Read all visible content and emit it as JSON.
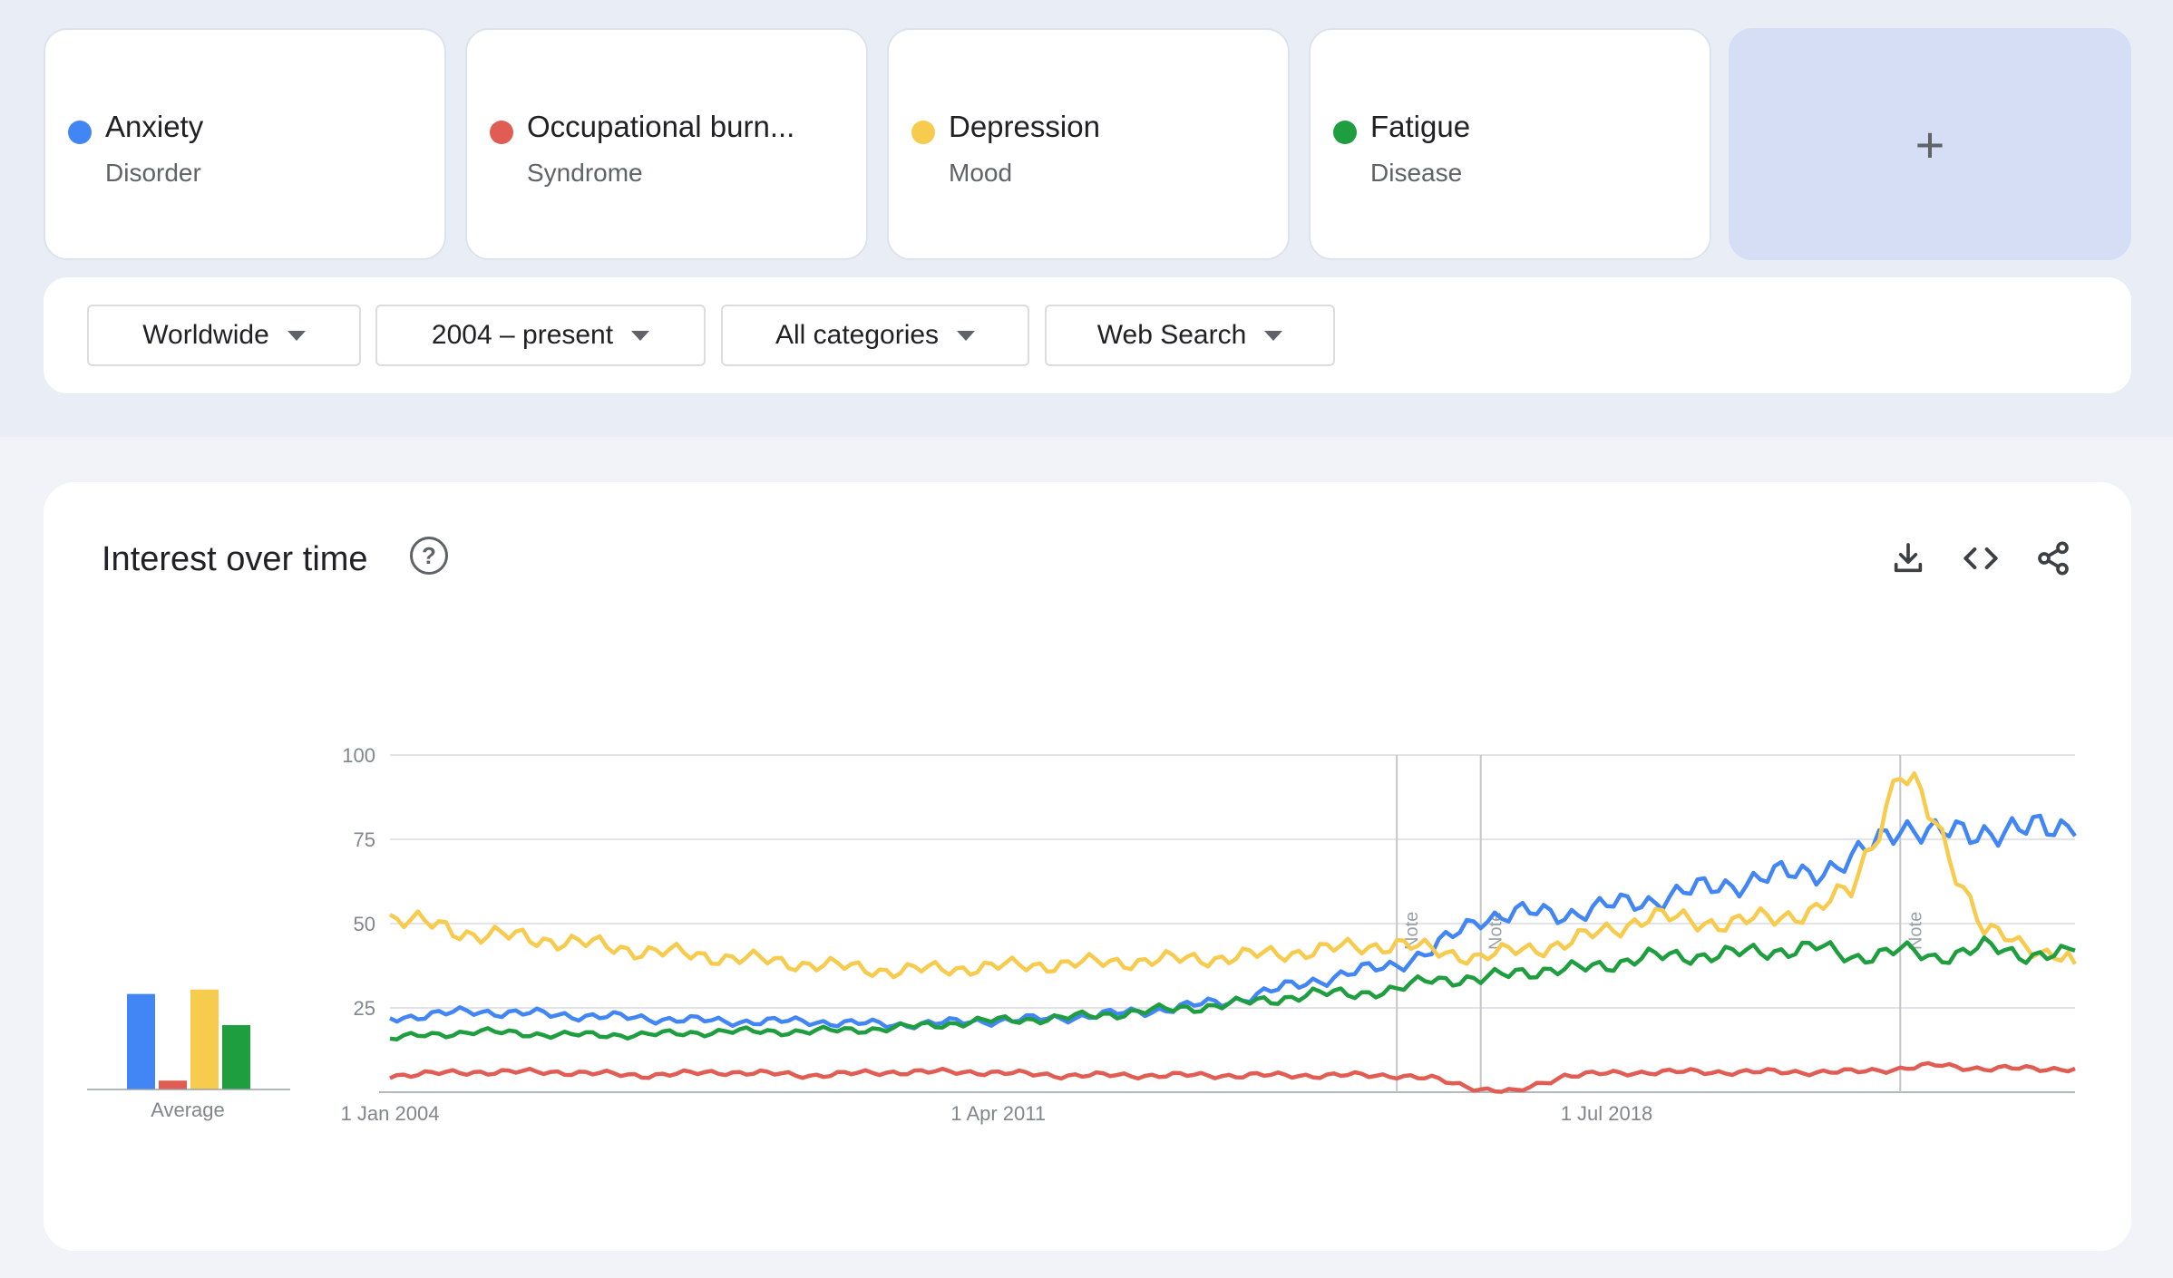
{
  "terms": [
    {
      "name": "Anxiety",
      "type": "Disorder",
      "color": "#4285f4"
    },
    {
      "name": "Occupational burn...",
      "type": "Syndrome",
      "color": "#e15d54"
    },
    {
      "name": "Depression",
      "type": "Mood",
      "color": "#f7cb4d"
    },
    {
      "name": "Fatigue",
      "type": "Disease",
      "color": "#1e9e3f"
    }
  ],
  "add_card": {
    "icon": "plus-icon",
    "symbol": "+"
  },
  "filters": {
    "region": "Worldwide",
    "time": "2004 – present",
    "category": "All categories",
    "search_type": "Web Search"
  },
  "panel": {
    "title": "Interest over time",
    "help_symbol": "?",
    "icons": [
      "download-icon",
      "embed-icon",
      "share-icon"
    ]
  },
  "chart_data": {
    "type": "line",
    "x_start": "2004-01",
    "x_end": "2024-02",
    "x_tick_labels": [
      "1 Jan 2004",
      "1 Apr 2011",
      "1 Jul 2018"
    ],
    "x_tick_dates": [
      "2004-01",
      "2011-04",
      "2018-07"
    ],
    "y_ticks": [
      25,
      50,
      75,
      100
    ],
    "ylim": [
      0,
      100
    ],
    "grid": true,
    "note_markers": [
      {
        "label": "Note",
        "date": "2016-01"
      },
      {
        "label": "Note",
        "date": "2017-01"
      },
      {
        "label": "Note",
        "date": "2022-01"
      }
    ],
    "series": [
      {
        "color": "#4285f4",
        "points": [
          [
            "2004-01",
            22
          ],
          [
            "2005-01",
            24
          ],
          [
            "2006-01",
            23
          ],
          [
            "2007-01",
            22
          ],
          [
            "2008-01",
            21
          ],
          [
            "2009-01",
            21
          ],
          [
            "2010-01",
            20
          ],
          [
            "2011-01",
            21
          ],
          [
            "2012-01",
            22
          ],
          [
            "2013-01",
            24
          ],
          [
            "2014-01",
            27
          ],
          [
            "2015-01",
            33
          ],
          [
            "2016-01",
            38
          ],
          [
            "2016-06",
            42
          ],
          [
            "2017-01",
            52
          ],
          [
            "2017-06",
            53
          ],
          [
            "2018-01",
            53
          ],
          [
            "2019-01",
            57
          ],
          [
            "2020-01",
            62
          ],
          [
            "2021-01",
            66
          ],
          [
            "2021-06",
            68
          ],
          [
            "2022-01",
            80
          ],
          [
            "2022-06",
            76
          ],
          [
            "2023-01",
            78
          ],
          [
            "2023-06",
            77
          ],
          [
            "2024-01",
            80
          ],
          [
            "2024-02",
            76
          ]
        ],
        "average": 43
      },
      {
        "color": "#e15d54",
        "points": [
          [
            "2004-01",
            5
          ],
          [
            "2005-01",
            6
          ],
          [
            "2006-01",
            6
          ],
          [
            "2007-01",
            5
          ],
          [
            "2008-01",
            6
          ],
          [
            "2009-01",
            5
          ],
          [
            "2010-01",
            6
          ],
          [
            "2011-01",
            6
          ],
          [
            "2012-01",
            5
          ],
          [
            "2013-01",
            5
          ],
          [
            "2014-01",
            5
          ],
          [
            "2015-01",
            5
          ],
          [
            "2016-01",
            5
          ],
          [
            "2016-06",
            4
          ],
          [
            "2017-01",
            1
          ],
          [
            "2017-06",
            0
          ],
          [
            "2018-01",
            5
          ],
          [
            "2019-01",
            6
          ],
          [
            "2020-01",
            6
          ],
          [
            "2021-01",
            6
          ],
          [
            "2021-06",
            6
          ],
          [
            "2022-01",
            7
          ],
          [
            "2022-06",
            8
          ],
          [
            "2023-01",
            7
          ],
          [
            "2023-06",
            7
          ],
          [
            "2024-01",
            7
          ],
          [
            "2024-02",
            7
          ]
        ],
        "average": 4
      },
      {
        "color": "#f7cb4d",
        "points": [
          [
            "2004-01",
            52
          ],
          [
            "2005-01",
            47
          ],
          [
            "2006-01",
            45
          ],
          [
            "2007-01",
            42
          ],
          [
            "2008-01",
            40
          ],
          [
            "2009-01",
            38
          ],
          [
            "2010-01",
            36
          ],
          [
            "2011-01",
            37
          ],
          [
            "2012-01",
            38
          ],
          [
            "2013-01",
            39
          ],
          [
            "2014-01",
            40
          ],
          [
            "2015-01",
            42
          ],
          [
            "2016-01",
            44
          ],
          [
            "2016-06",
            42
          ],
          [
            "2017-01",
            40
          ],
          [
            "2017-06",
            42
          ],
          [
            "2018-01",
            44
          ],
          [
            "2019-01",
            52
          ],
          [
            "2020-01",
            50
          ],
          [
            "2021-01",
            54
          ],
          [
            "2021-06",
            60
          ],
          [
            "2022-01",
            95
          ],
          [
            "2022-06",
            80
          ],
          [
            "2023-01",
            48
          ],
          [
            "2023-06",
            44
          ],
          [
            "2024-01",
            40
          ],
          [
            "2024-02",
            38
          ]
        ],
        "average": 45
      },
      {
        "color": "#1e9e3f",
        "points": [
          [
            "2004-01",
            16
          ],
          [
            "2005-01",
            18
          ],
          [
            "2006-01",
            17
          ],
          [
            "2007-01",
            17
          ],
          [
            "2008-01",
            18
          ],
          [
            "2009-01",
            18
          ],
          [
            "2010-01",
            19
          ],
          [
            "2011-01",
            21
          ],
          [
            "2012-01",
            22
          ],
          [
            "2013-01",
            24
          ],
          [
            "2014-01",
            26
          ],
          [
            "2015-01",
            29
          ],
          [
            "2016-01",
            30
          ],
          [
            "2016-06",
            34
          ],
          [
            "2017-01",
            33
          ],
          [
            "2017-06",
            36
          ],
          [
            "2018-01",
            36
          ],
          [
            "2019-01",
            40
          ],
          [
            "2020-01",
            41
          ],
          [
            "2021-01",
            43
          ],
          [
            "2021-06",
            40
          ],
          [
            "2022-01",
            42
          ],
          [
            "2022-06",
            40
          ],
          [
            "2023-01",
            43
          ],
          [
            "2023-06",
            41
          ],
          [
            "2024-01",
            41
          ],
          [
            "2024-02",
            42
          ]
        ],
        "average": 29
      }
    ],
    "average_label": "Average"
  }
}
